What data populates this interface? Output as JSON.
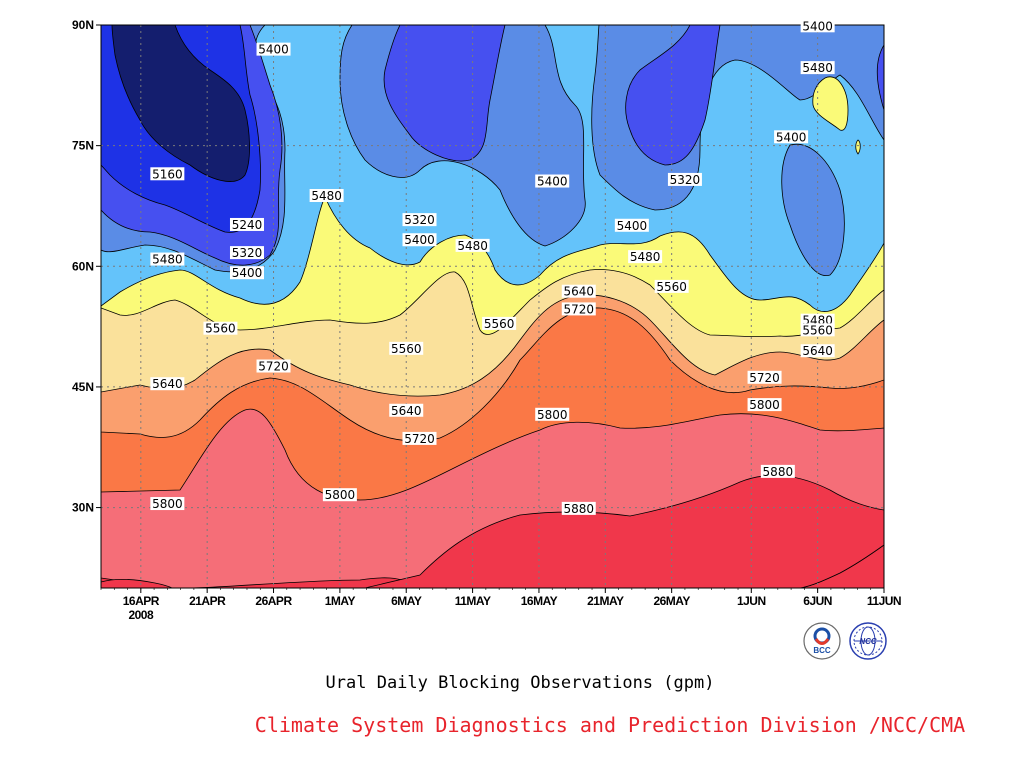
{
  "chart_data": {
    "type": "heatmap",
    "title": "Ural Daily Blocking Observations (gpm)",
    "credit": "Climate System Diagnostics and Prediction Division /NCC/CMA",
    "x_ticks": [
      "16APR",
      "21APR",
      "26APR",
      "1MAY",
      "6MAY",
      "11MAY",
      "16MAY",
      "21MAY",
      "26MAY",
      "1JUN",
      "6JUN",
      "11JUN"
    ],
    "x_year_label": "2008",
    "y_ticks": [
      "30N",
      "45N",
      "60N",
      "75N",
      "90N"
    ],
    "x_range": [
      "13APR",
      "11JUN"
    ],
    "y_range": [
      20,
      90
    ],
    "contour_levels": [
      5160,
      5240,
      5320,
      5400,
      5480,
      5560,
      5640,
      5720,
      5800,
      5880
    ],
    "fill_colors": {
      "lt5160": "#141e6e",
      "5160": "#1e32e6",
      "5240": "#4650f0",
      "5320": "#5a8ce6",
      "5400": "#64c3fa",
      "5480": "#fafa78",
      "5560": "#fae19b",
      "5640": "#fa9f6e",
      "5720": "#fa7846",
      "5800": "#f56e78",
      "5880": "#f0374b"
    },
    "contour_labels": [
      {
        "text": "5400",
        "x": "26APR",
        "y": 87
      },
      {
        "text": "5160",
        "x": "18APR",
        "y": 71.5
      },
      {
        "text": "5240",
        "x": "24APR",
        "y": 65.2
      },
      {
        "text": "5320",
        "x": "24APR",
        "y": 61.7
      },
      {
        "text": "5400",
        "x": "24APR",
        "y": 59.2
      },
      {
        "text": "5480",
        "x": "18APR",
        "y": 60.9
      },
      {
        "text": "5480",
        "x": "30APR",
        "y": 68.8
      },
      {
        "text": "5320",
        "x": "7MAY",
        "y": 65.8
      },
      {
        "text": "5400",
        "x": "7MAY",
        "y": 63.3
      },
      {
        "text": "5480",
        "x": "11MAY",
        "y": 62.6
      },
      {
        "text": "5400",
        "x": "17MAY",
        "y": 70.6
      },
      {
        "text": "5320",
        "x": "27MAY",
        "y": 70.8
      },
      {
        "text": "5400",
        "x": "23MAY",
        "y": 65.1
      },
      {
        "text": "5480",
        "x": "24MAY",
        "y": 61.2
      },
      {
        "text": "5400",
        "x": "4JUN",
        "y": 76.1
      },
      {
        "text": "5480",
        "x": "6JUN",
        "y": 84.7
      },
      {
        "text": "5400",
        "x": "6JUN",
        "y": 89.9
      },
      {
        "text": "5560",
        "x": "22APR",
        "y": 52.3
      },
      {
        "text": "5560",
        "x": "6MAY",
        "y": 49.8
      },
      {
        "text": "5560",
        "x": "13MAY",
        "y": 52.9
      },
      {
        "text": "5640",
        "x": "19MAY",
        "y": 56.9
      },
      {
        "text": "5560",
        "x": "26MAY",
        "y": 57.5
      },
      {
        "text": "5480",
        "x": "6JUN",
        "y": 53.3
      },
      {
        "text": "5560",
        "x": "6JUN",
        "y": 52.1
      },
      {
        "text": "5640",
        "x": "6JUN",
        "y": 49.5
      },
      {
        "text": "5640",
        "x": "18APR",
        "y": 45.4
      },
      {
        "text": "5720",
        "x": "26APR",
        "y": 47.6
      },
      {
        "text": "5640",
        "x": "6MAY",
        "y": 42.1
      },
      {
        "text": "5720",
        "x": "19MAY",
        "y": 54.7
      },
      {
        "text": "5720",
        "x": "7MAY",
        "y": 38.6
      },
      {
        "text": "5720",
        "x": "2JUN",
        "y": 46.2
      },
      {
        "text": "5800",
        "x": "18APR",
        "y": 30.5
      },
      {
        "text": "5800",
        "x": "1MAY",
        "y": 31.6
      },
      {
        "text": "5800",
        "x": "17MAY",
        "y": 41.6
      },
      {
        "text": "5800",
        "x": "2JUN",
        "y": 42.8
      },
      {
        "text": "5880",
        "x": "19MAY",
        "y": 29.9
      },
      {
        "text": "5880",
        "x": "3JUN",
        "y": 34.5
      }
    ]
  },
  "logos": [
    {
      "name": "BCC",
      "text": "BCC"
    },
    {
      "name": "NCC",
      "text": "NCC"
    }
  ]
}
